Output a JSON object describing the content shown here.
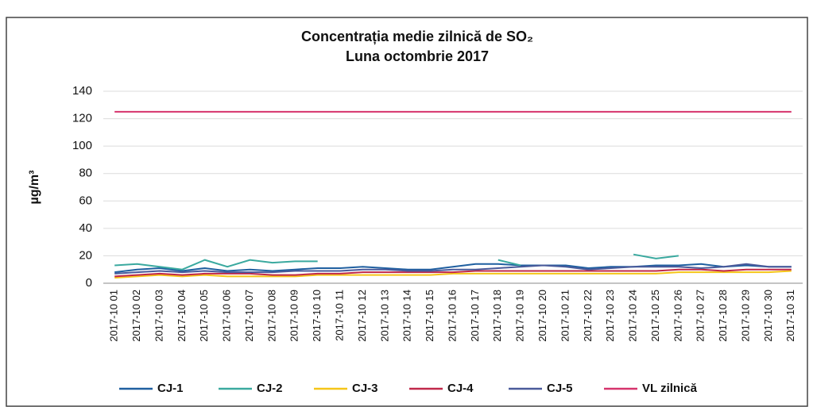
{
  "chart_data": {
    "type": "line",
    "title": "Concentrația medie zilnică de SO₂",
    "subtitle": "Luna octombrie 2017",
    "y_label": "µg/m³",
    "categories": [
      "2017-10 01",
      "2017-10 02",
      "2017-10 03",
      "2017-10 04",
      "2017-10 05",
      "2017-10 06",
      "2017-10 07",
      "2017-10 08",
      "2017-10 09",
      "2017-10 10",
      "2017-10 11",
      "2017-10 12",
      "2017-10 13",
      "2017-10 14",
      "2017-10 15",
      "2017-10 16",
      "2017-10 17",
      "2017-10 18",
      "2017-10 19",
      "2017-10 20",
      "2017-10 21",
      "2017-10 22",
      "2017-10 23",
      "2017-10 24",
      "2017-10 25",
      "2017-10 26",
      "2017-10 27",
      "2017-10 28",
      "2017-10 29",
      "2017-10 30",
      "2017-10 31"
    ],
    "series": [
      {
        "name": "CJ-1",
        "color": "#1f5fa0",
        "values": [
          8,
          10,
          11,
          9,
          11,
          9,
          10,
          9,
          10,
          11,
          11,
          12,
          11,
          10,
          10,
          12,
          14,
          14,
          13,
          13,
          13,
          11,
          12,
          12,
          13,
          13,
          14,
          12,
          13,
          12,
          12
        ]
      },
      {
        "name": "CJ-2",
        "color": "#3aa99f",
        "values": [
          13,
          14,
          12,
          10,
          17,
          12,
          17,
          15,
          16,
          16,
          null,
          null,
          null,
          null,
          null,
          null,
          null,
          17,
          13,
          null,
          null,
          null,
          null,
          21,
          18,
          20,
          null,
          null,
          null,
          null,
          null
        ]
      },
      {
        "name": "CJ-3",
        "color": "#f5c518",
        "values": [
          4,
          5,
          6,
          5,
          6,
          5,
          5,
          5,
          5,
          6,
          6,
          6,
          6,
          6,
          6,
          7,
          7,
          7,
          7,
          7,
          7,
          7,
          7,
          7,
          7,
          8,
          8,
          8,
          8,
          8,
          9
        ]
      },
      {
        "name": "CJ-4",
        "color": "#c0284a",
        "values": [
          5,
          6,
          7,
          6,
          7,
          7,
          7,
          6,
          6,
          7,
          7,
          8,
          8,
          8,
          8,
          8,
          9,
          9,
          9,
          9,
          9,
          9,
          9,
          9,
          9,
          10,
          10,
          9,
          10,
          10,
          10
        ]
      },
      {
        "name": "CJ-5",
        "color": "#4a5a9a",
        "values": [
          7,
          8,
          9,
          8,
          9,
          8,
          8,
          8,
          9,
          9,
          9,
          10,
          10,
          9,
          9,
          10,
          10,
          11,
          12,
          13,
          12,
          10,
          11,
          12,
          12,
          12,
          11,
          12,
          14,
          12,
          12
        ]
      },
      {
        "name": "VL zilnică",
        "color": "#d6336c",
        "values": [
          125,
          125,
          125,
          125,
          125,
          125,
          125,
          125,
          125,
          125,
          125,
          125,
          125,
          125,
          125,
          125,
          125,
          125,
          125,
          125,
          125,
          125,
          125,
          125,
          125,
          125,
          125,
          125,
          125,
          125,
          125
        ]
      }
    ],
    "ylim": [
      0,
      140
    ],
    "yticks": [
      0,
      20,
      40,
      60,
      80,
      100,
      120,
      140
    ],
    "grid": true
  }
}
